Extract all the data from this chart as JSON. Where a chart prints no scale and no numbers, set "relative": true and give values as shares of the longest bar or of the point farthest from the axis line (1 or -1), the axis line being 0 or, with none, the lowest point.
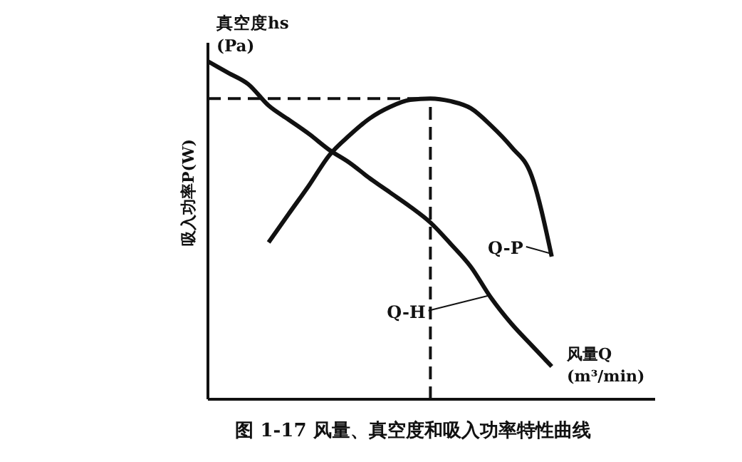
{
  "chart_data": {
    "type": "line",
    "relative": true,
    "title": "图 1-17  风量、真空度和吸入功率特性曲线",
    "ylabel": "吸入功率P(W)",
    "xlabel": "风量Q\n(m³/min)",
    "annotations": [
      "真空度hs\n(Pa)"
    ],
    "categories": [
      null,
      null,
      null,
      null,
      null,
      null,
      null,
      null,
      null,
      null,
      null,
      null,
      null,
      null,
      null,
      null,
      null,
      null,
      null,
      null,
      null
    ],
    "series": [
      {
        "name": "Q-H",
        "color": "#111111",
        "values": [
          1.0,
          0.966,
          0.932,
          0.869,
          0.827,
          0.785,
          0.738,
          0.7,
          0.654,
          0.612,
          0.57,
          0.523,
          0.46,
          0.392,
          0.3,
          0.224,
          0.16,
          0.097,
          null,
          null,
          null
        ]
      },
      {
        "name": "Q-P",
        "color": "#111111",
        "values": [
          null,
          null,
          null,
          0.464,
          0.549,
          0.633,
          0.722,
          0.781,
          0.831,
          0.865,
          0.886,
          0.89,
          0.882,
          0.861,
          0.81,
          0.747,
          0.662,
          0.422,
          null,
          null,
          null
        ]
      }
    ],
    "ref_lines": [
      {
        "axis": "y",
        "value": 0.89,
        "line_style": "dashed"
      }
    ],
    "grid": false,
    "legend": "right",
    "marker": "none",
    "line_style": "solid"
  }
}
